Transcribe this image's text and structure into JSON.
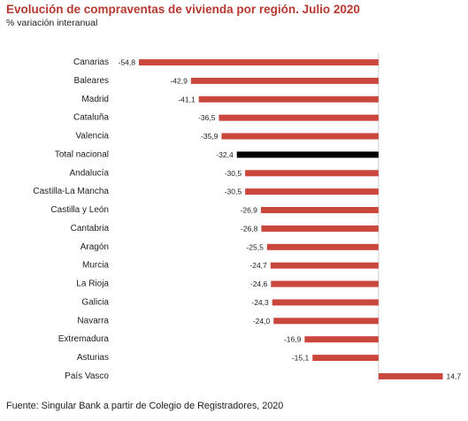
{
  "colors": {
    "title": "#b6392f"
  },
  "chart_data": {
    "type": "bar",
    "orientation": "horizontal",
    "title": "Evolución de compraventas de vivienda por región. Julio 2020",
    "subtitle": "% variación interanual",
    "source": "Fuente: Singular Bank a partir de Colegio de Registradores, 2020",
    "categories": [
      "Canarias",
      "Baleares",
      "Madrid",
      "Cataluña",
      "Valencia",
      "Total nacional",
      "Andalucía",
      "Castilla-La Mancha",
      "Castilla y León",
      "Cantabria",
      "Aragón",
      "Murcia",
      "La Rioja",
      "Galicia",
      "Navarra",
      "Extremadura",
      "Asturias",
      "País Vasco"
    ],
    "values": [
      -54.8,
      -42.9,
      -41.1,
      -36.5,
      -35.9,
      -32.4,
      -30.5,
      -30.5,
      -26.9,
      -26.8,
      -25.5,
      -24.7,
      -24.6,
      -24.3,
      -24.0,
      -16.9,
      -15.1,
      14.7
    ],
    "data_labels": [
      "-54,8",
      "-42,9",
      "-41,1",
      "-36,5",
      "-35,9",
      "-32,4",
      "-30,5",
      "-30,5",
      "-26,9",
      "-26,8",
      "-25,5",
      "-24,7",
      "-24,6",
      "-24,3",
      "-24,0",
      "-16,9",
      "-15,1",
      "14,7"
    ],
    "bar_colors": [
      "#c9473d",
      "#c9473d",
      "#c9473d",
      "#c9473d",
      "#c9473d",
      "#000000",
      "#c9473d",
      "#c9473d",
      "#c9473d",
      "#c9473d",
      "#c9473d",
      "#c9473d",
      "#c9473d",
      "#c9473d",
      "#c9473d",
      "#c9473d",
      "#c9473d",
      "#c9473d"
    ],
    "xlim": [
      -55,
      15
    ],
    "grid": false,
    "zero_line": true
  }
}
